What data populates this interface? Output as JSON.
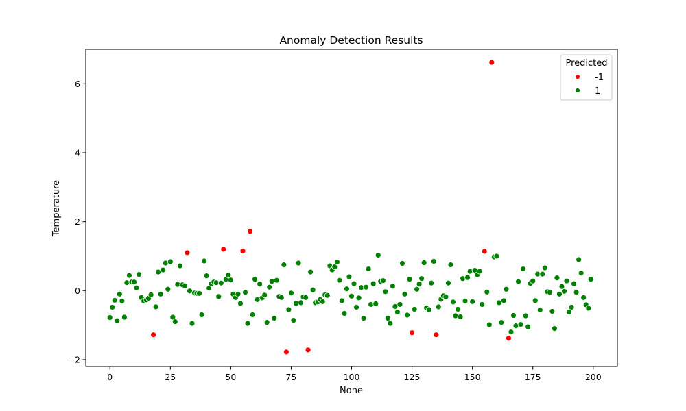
{
  "chart_data": {
    "type": "scatter",
    "title": "Anomaly Detection Results",
    "xlabel": "None",
    "ylabel": "Temperature",
    "xlim": [
      -10,
      210
    ],
    "ylim": [
      -2.2,
      7.0
    ],
    "xticks": [
      0,
      25,
      50,
      75,
      100,
      125,
      150,
      175,
      200
    ],
    "yticks": [
      -2,
      0,
      2,
      4,
      6
    ],
    "ytick_labels": [
      "−2",
      "0",
      "2",
      "4",
      "6"
    ],
    "grid": false,
    "legend": {
      "title": "Predicted",
      "placement": "top-right"
    },
    "series": [
      {
        "name": "-1",
        "color": "#ff0000",
        "x": [
          18,
          32,
          47,
          55,
          58,
          73,
          82,
          125,
          135,
          155,
          158,
          165
        ],
        "y": [
          -1.28,
          1.1,
          1.2,
          1.15,
          1.72,
          -1.78,
          -1.72,
          -1.22,
          -1.28,
          1.14,
          6.62,
          -1.38
        ]
      },
      {
        "name": "1",
        "color": "#008000",
        "x": [
          0,
          1,
          2,
          3,
          4,
          5,
          6,
          7,
          8,
          9,
          10,
          11,
          12,
          13,
          14,
          15,
          16,
          17,
          19,
          20,
          21,
          22,
          23,
          24,
          25,
          26,
          27,
          28,
          29,
          30,
          31,
          33,
          34,
          35,
          36,
          37,
          38,
          39,
          40,
          41,
          42,
          43,
          44,
          45,
          46,
          48,
          49,
          50,
          51,
          52,
          53,
          54,
          56,
          57,
          59,
          60,
          61,
          62,
          63,
          64,
          65,
          66,
          67,
          68,
          69,
          70,
          71,
          72,
          74,
          75,
          76,
          77,
          78,
          79,
          80,
          81,
          83,
          84,
          85,
          86,
          87,
          88,
          89,
          90,
          91,
          92,
          93,
          94,
          95,
          96,
          97,
          98,
          99,
          100,
          101,
          102,
          103,
          104,
          105,
          106,
          107,
          108,
          109,
          110,
          111,
          112,
          113,
          114,
          115,
          116,
          117,
          118,
          119,
          120,
          121,
          122,
          123,
          124,
          126,
          127,
          128,
          129,
          130,
          131,
          132,
          133,
          134,
          136,
          137,
          138,
          139,
          140,
          141,
          142,
          143,
          144,
          145,
          146,
          147,
          148,
          149,
          150,
          151,
          152,
          153,
          154,
          156,
          157,
          159,
          160,
          161,
          162,
          163,
          164,
          166,
          167,
          168,
          169,
          170,
          171,
          172,
          173,
          174,
          175,
          176,
          177,
          178,
          179,
          180,
          181,
          182,
          183,
          184,
          185,
          186,
          187,
          188,
          189,
          190,
          191,
          192,
          193,
          194,
          195,
          196,
          197,
          198,
          199
        ],
        "y": [
          -0.78,
          -0.48,
          -0.28,
          -0.87,
          -0.1,
          -0.3,
          -0.77,
          0.23,
          0.44,
          0.25,
          0.25,
          0.08,
          0.47,
          -0.2,
          -0.3,
          -0.27,
          -0.22,
          -0.12,
          -0.47,
          0.54,
          -0.1,
          0.6,
          0.8,
          0.04,
          0.84,
          -0.77,
          -0.9,
          0.18,
          0.72,
          0.17,
          0.14,
          -0.01,
          -0.95,
          -0.07,
          -0.08,
          -0.08,
          -0.7,
          0.86,
          0.43,
          0.07,
          0.2,
          0.25,
          0.23,
          -0.17,
          0.22,
          0.33,
          0.45,
          0.31,
          -0.1,
          -0.2,
          -0.1,
          -0.37,
          -0.05,
          -0.95,
          -0.7,
          0.33,
          -0.26,
          0.19,
          -0.21,
          -0.13,
          -0.92,
          0.1,
          0.27,
          -0.8,
          0.3,
          -0.17,
          -0.2,
          0.75,
          -0.55,
          -0.07,
          -0.86,
          -0.37,
          0.8,
          -0.35,
          -0.18,
          -0.2,
          0.54,
          0.02,
          -0.35,
          -0.33,
          -0.26,
          -0.32,
          -0.12,
          -0.14,
          0.72,
          0.6,
          0.69,
          0.83,
          0.3,
          -0.29,
          -0.66,
          0.05,
          0.4,
          -0.16,
          0.2,
          -0.48,
          -0.21,
          0.09,
          -0.8,
          0.1,
          0.63,
          -0.4,
          0.2,
          -0.38,
          1.03,
          0.27,
          0.29,
          -0.03,
          -0.8,
          -0.95,
          0.13,
          -0.46,
          -0.62,
          -0.4,
          0.79,
          -0.1,
          -0.71,
          0.33,
          -0.54,
          0.04,
          0.19,
          0.35,
          0.81,
          -0.5,
          -0.55,
          0.22,
          0.85,
          -0.47,
          -0.25,
          -0.15,
          -0.18,
          0.22,
          0.75,
          -0.33,
          -0.73,
          -0.54,
          -0.76,
          0.35,
          -0.3,
          0.38,
          0.56,
          -0.32,
          0.59,
          0.46,
          0.56,
          -0.4,
          -0.04,
          -0.99,
          0.98,
          1.0,
          -0.35,
          -0.92,
          -0.29,
          0.04,
          -1.2,
          -0.72,
          -1.02,
          0.26,
          -0.98,
          0.63,
          -0.73,
          -1.05,
          0.21,
          0.28,
          -0.29,
          0.48,
          -0.56,
          0.48,
          0.66,
          -0.03,
          -0.05,
          -0.6,
          -1.1,
          0.37,
          -0.1,
          0.12,
          -0.02,
          0.28,
          -0.62,
          -0.48,
          0.2,
          -0.05,
          0.9,
          0.51,
          -0.2,
          -0.41,
          -0.51,
          0.33
        ]
      }
    ]
  }
}
